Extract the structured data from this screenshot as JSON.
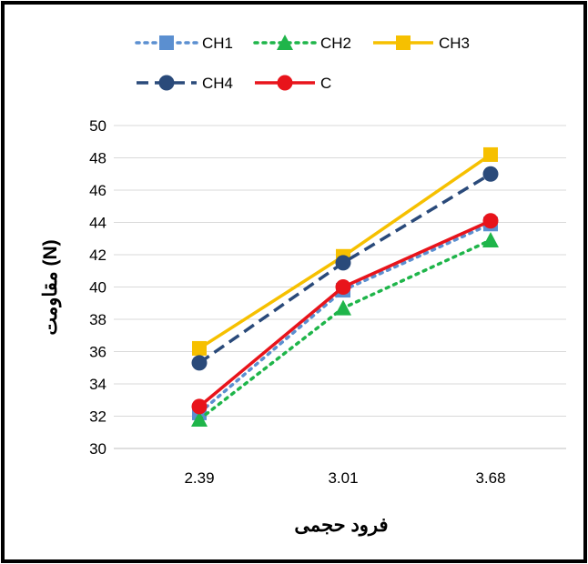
{
  "chart_data": {
    "type": "line",
    "title": "",
    "xlabel": "فرود حجمی",
    "ylabel": "مقاومت (N)",
    "categories": [
      "2.39",
      "3.01",
      "3.68"
    ],
    "x": [
      2.39,
      3.01,
      3.68
    ],
    "ylim": [
      30,
      50
    ],
    "yticks": [
      30,
      32,
      34,
      36,
      38,
      40,
      42,
      44,
      46,
      48,
      50
    ],
    "grid": true,
    "legend": "top",
    "series": [
      {
        "name": "CH1",
        "values": [
          32.2,
          39.8,
          43.9
        ],
        "color": "#5b8fd0",
        "line": "dotted",
        "marker": "square"
      },
      {
        "name": "CH2",
        "values": [
          31.8,
          38.7,
          42.9
        ],
        "color": "#1fb54a",
        "line": "dotted",
        "marker": "triangle"
      },
      {
        "name": "CH3",
        "values": [
          36.2,
          41.9,
          48.2
        ],
        "color": "#f6c000",
        "line": "solid",
        "marker": "square"
      },
      {
        "name": "CH4",
        "values": [
          35.3,
          41.5,
          47.0
        ],
        "color": "#2a4a7a",
        "line": "dashed",
        "marker": "circle"
      },
      {
        "name": "C",
        "values": [
          32.6,
          40.0,
          44.1
        ],
        "color": "#e8141b",
        "line": "solid",
        "marker": "circle"
      }
    ]
  }
}
